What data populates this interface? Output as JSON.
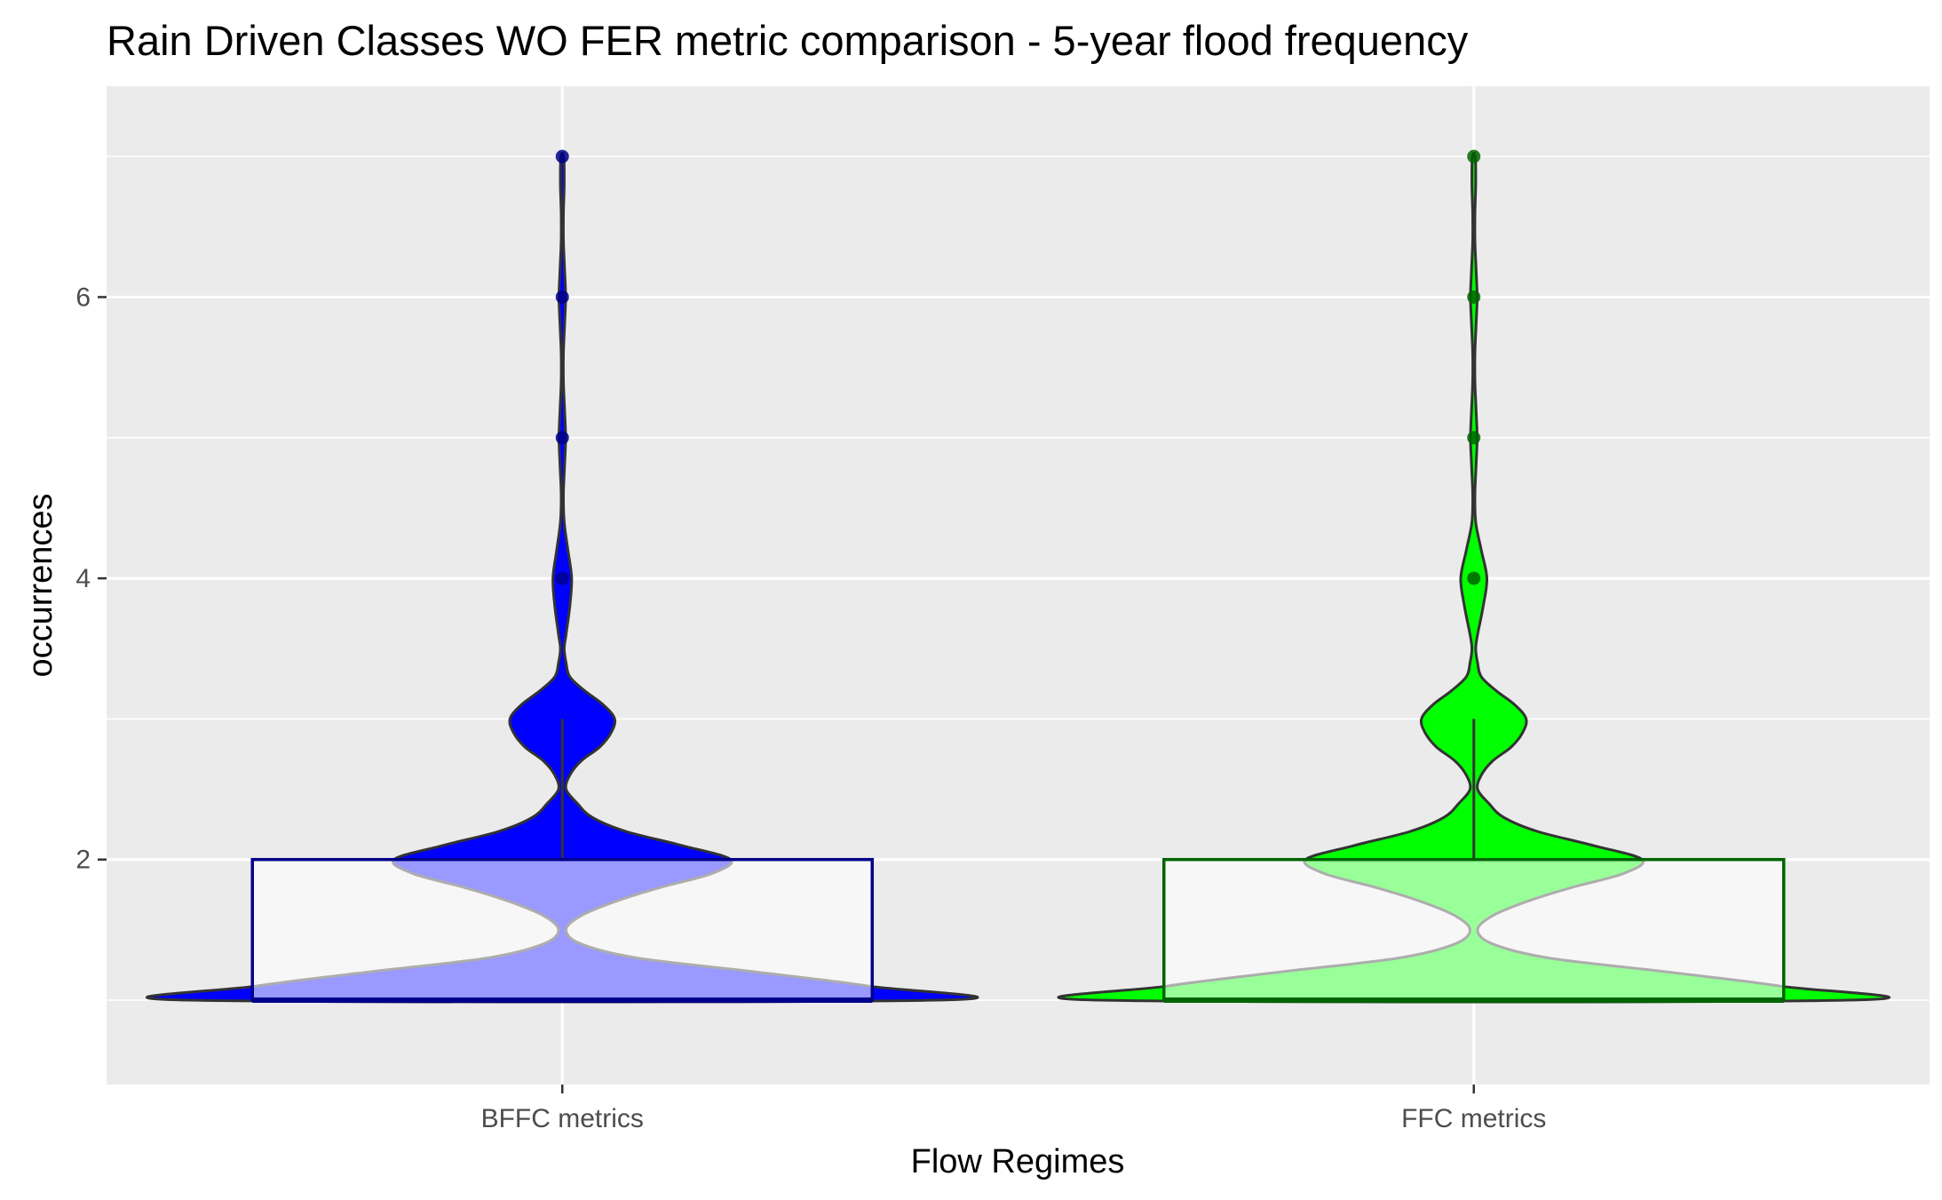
{
  "chart_data": {
    "type": "violin",
    "title": "Rain Driven Classes WO FER metric comparison  - 5-year flood frequency",
    "xlabel": "Flow Regimes",
    "ylabel": "occurrences",
    "categories": [
      "BFFC metrics",
      "FFC metrics"
    ],
    "y_ticks": [
      2,
      4,
      6
    ],
    "ylim": [
      0.4,
      7.5
    ],
    "grid": true,
    "legend": "none",
    "series": [
      {
        "category": "BFFC metrics",
        "fill_color": "#0000ff",
        "box_color": "#00008b",
        "point_color": "#00008b",
        "box": {
          "min": 1,
          "q1": 1,
          "median": 1,
          "q3": 2,
          "whisker_max": 3
        },
        "outliers": [
          4,
          5,
          6,
          7
        ],
        "density": [
          [
            1.0,
            1.0
          ],
          [
            1.1,
            0.82
          ],
          [
            1.2,
            0.52
          ],
          [
            1.3,
            0.2
          ],
          [
            1.4,
            0.05
          ],
          [
            1.5,
            0.01
          ],
          [
            1.6,
            0.05
          ],
          [
            1.7,
            0.14
          ],
          [
            1.8,
            0.26
          ],
          [
            1.9,
            0.4
          ],
          [
            2.0,
            0.45
          ],
          [
            2.1,
            0.32
          ],
          [
            2.2,
            0.17
          ],
          [
            2.3,
            0.08
          ],
          [
            2.4,
            0.04
          ],
          [
            2.5,
            0.01
          ],
          [
            2.6,
            0.02
          ],
          [
            2.7,
            0.05
          ],
          [
            2.8,
            0.1
          ],
          [
            2.9,
            0.13
          ],
          [
            3.0,
            0.14
          ],
          [
            3.1,
            0.11
          ],
          [
            3.2,
            0.06
          ],
          [
            3.3,
            0.02
          ],
          [
            3.4,
            0.01
          ],
          [
            3.5,
            0.005
          ],
          [
            3.6,
            0.01
          ],
          [
            3.8,
            0.02
          ],
          [
            4.0,
            0.025
          ],
          [
            4.2,
            0.015
          ],
          [
            4.4,
            0.005
          ],
          [
            4.6,
            0.003
          ],
          [
            4.8,
            0.006
          ],
          [
            5.0,
            0.009
          ],
          [
            5.2,
            0.006
          ],
          [
            5.4,
            0.003
          ],
          [
            5.6,
            0.003
          ],
          [
            5.8,
            0.006
          ],
          [
            6.0,
            0.009
          ],
          [
            6.2,
            0.006
          ],
          [
            6.4,
            0.003
          ],
          [
            6.6,
            0.003
          ],
          [
            6.8,
            0.005
          ],
          [
            7.0,
            0.004
          ]
        ]
      },
      {
        "category": "FFC metrics",
        "fill_color": "#00ff00",
        "box_color": "#006400",
        "point_color": "#006400",
        "box": {
          "min": 1,
          "q1": 1,
          "median": 1,
          "q3": 2,
          "whisker_max": 3
        },
        "outliers": [
          4,
          5,
          6,
          7
        ],
        "density": [
          [
            1.0,
            1.0
          ],
          [
            1.1,
            0.82
          ],
          [
            1.2,
            0.52
          ],
          [
            1.3,
            0.2
          ],
          [
            1.4,
            0.05
          ],
          [
            1.5,
            0.01
          ],
          [
            1.6,
            0.05
          ],
          [
            1.7,
            0.14
          ],
          [
            1.8,
            0.26
          ],
          [
            1.9,
            0.4
          ],
          [
            2.0,
            0.45
          ],
          [
            2.1,
            0.32
          ],
          [
            2.2,
            0.17
          ],
          [
            2.3,
            0.08
          ],
          [
            2.4,
            0.04
          ],
          [
            2.5,
            0.01
          ],
          [
            2.6,
            0.02
          ],
          [
            2.7,
            0.05
          ],
          [
            2.8,
            0.1
          ],
          [
            2.9,
            0.13
          ],
          [
            3.0,
            0.14
          ],
          [
            3.1,
            0.11
          ],
          [
            3.2,
            0.06
          ],
          [
            3.3,
            0.02
          ],
          [
            3.4,
            0.01
          ],
          [
            3.5,
            0.005
          ],
          [
            3.6,
            0.01
          ],
          [
            3.8,
            0.025
          ],
          [
            4.0,
            0.035
          ],
          [
            4.2,
            0.02
          ],
          [
            4.4,
            0.005
          ],
          [
            4.6,
            0.003
          ],
          [
            4.8,
            0.006
          ],
          [
            5.0,
            0.009
          ],
          [
            5.2,
            0.006
          ],
          [
            5.4,
            0.003
          ],
          [
            5.6,
            0.003
          ],
          [
            5.8,
            0.006
          ],
          [
            6.0,
            0.009
          ],
          [
            6.2,
            0.006
          ],
          [
            6.4,
            0.003
          ],
          [
            6.6,
            0.003
          ],
          [
            6.8,
            0.005
          ],
          [
            7.0,
            0.004
          ]
        ]
      }
    ]
  }
}
